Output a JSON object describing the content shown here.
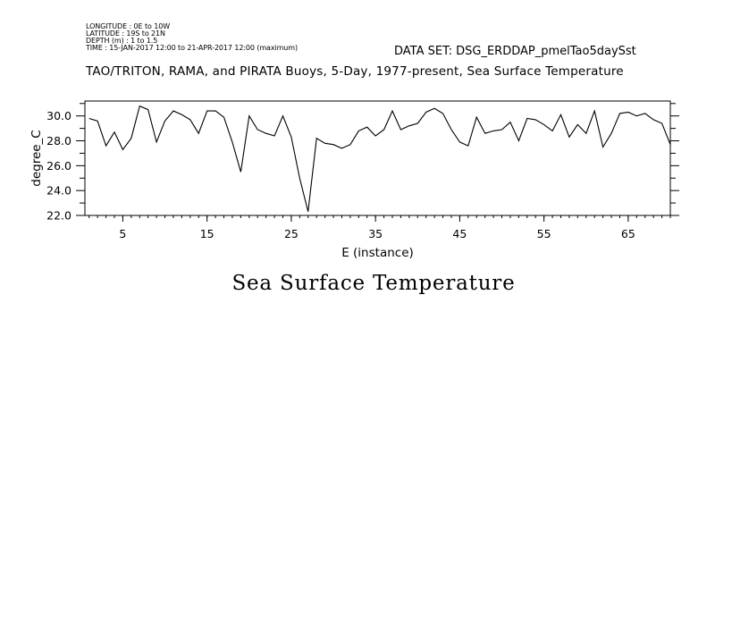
{
  "header": {
    "longitude": "LONGITUDE : 0E to 10W",
    "latitude": "LATITUDE : 19S to 21N",
    "depth": "DEPTH (m) : 1 to 1.5",
    "time": "TIME : 15-JAN-2017 12:00 to 21-APR-2017 12:00 (maximum)",
    "dataset": "DATA SET: DSG_ERDDAP_pmelTao5daySst",
    "title": "TAO/TRITON, RAMA, and PIRATA Buoys, 5-Day, 1977-present, Sea Surface Temperature"
  },
  "caption": "Sea Surface Temperature",
  "chart_data": {
    "type": "line",
    "xlabel": "E (instance)",
    "ylabel": "degree_C",
    "xlim": [
      0.5,
      70
    ],
    "ylim": [
      22,
      31.2
    ],
    "x_ticks": [
      5,
      15,
      25,
      35,
      45,
      55,
      65
    ],
    "x_tick_labels": [
      "5",
      "15",
      "25",
      "35",
      "45",
      "55",
      "65"
    ],
    "y_ticks": [
      22,
      24,
      26,
      28,
      30
    ],
    "y_tick_labels": [
      "22.0",
      "24.0",
      "26.0",
      "28.0",
      "30.0"
    ],
    "grid": false,
    "line_color": "#000000",
    "series": [
      {
        "x": [
          1,
          2,
          3,
          4,
          5,
          6,
          7,
          8,
          9,
          10,
          11,
          12,
          13,
          14,
          15,
          16,
          17,
          18,
          19,
          20,
          21,
          22,
          23,
          24,
          25,
          26,
          27,
          28,
          29,
          30,
          31,
          32,
          33,
          34,
          35,
          36,
          37,
          38,
          39,
          40,
          41,
          42,
          43,
          44,
          45,
          46,
          47,
          48,
          49,
          50,
          51,
          52,
          53,
          54,
          55,
          56,
          57,
          58,
          59,
          60,
          61,
          62,
          63,
          64,
          65,
          66,
          67,
          68,
          69,
          70
        ],
        "y": [
          29.8,
          29.6,
          27.6,
          28.7,
          27.3,
          28.2,
          30.8,
          30.5,
          27.9,
          29.6,
          30.4,
          30.1,
          29.7,
          28.6,
          30.4,
          30.4,
          29.9,
          27.9,
          25.5,
          30.0,
          28.9,
          28.6,
          28.4,
          30.0,
          28.3,
          25.0,
          22.3,
          28.2,
          27.8,
          27.7,
          27.4,
          27.7,
          28.8,
          29.1,
          28.4,
          28.9,
          30.4,
          28.9,
          29.2,
          29.4,
          30.3,
          30.6,
          30.2,
          28.9,
          27.9,
          27.6,
          29.9,
          28.6,
          28.8,
          28.9,
          29.5,
          28.0,
          29.8,
          29.7,
          29.3,
          28.8,
          30.1,
          28.3,
          29.3,
          28.6,
          30.4,
          27.5,
          28.6,
          30.2,
          30.3,
          30.0,
          30.2,
          29.7,
          29.4,
          27.7
        ]
      }
    ]
  }
}
